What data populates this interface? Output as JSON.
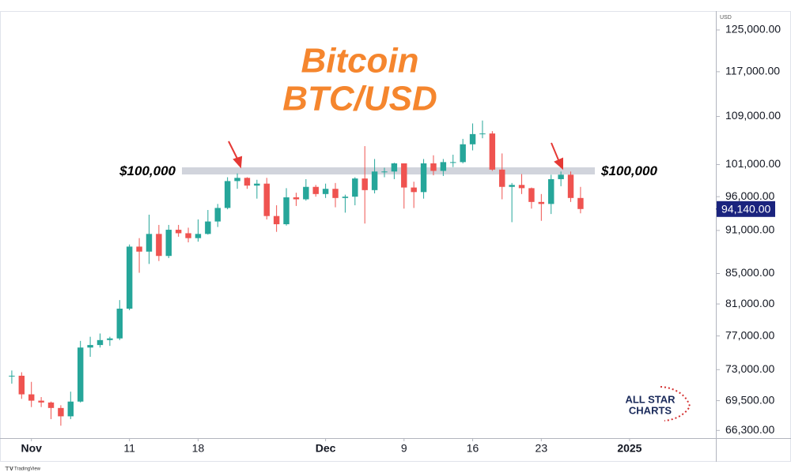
{
  "chart_data": {
    "type": "candlestick",
    "title": "Bitcoin",
    "subtitle": "BTC/USD",
    "axis_unit": "USD",
    "log_scale": true,
    "up_color": "#26a69a",
    "down_color": "#ef5350",
    "level": {
      "value": 100000,
      "label": "$100,000"
    },
    "last_price": {
      "value": 94140,
      "label": "94,140.00"
    },
    "xlim": [
      -2.8,
      69.8
    ],
    "xticks": [
      {
        "value": 0,
        "label": "Nov"
      },
      {
        "value": 10,
        "label": "11"
      },
      {
        "value": 17,
        "label": "18"
      },
      {
        "value": 30,
        "label": "Dec"
      },
      {
        "value": 38,
        "label": "9"
      },
      {
        "value": 45,
        "label": "16"
      },
      {
        "value": 52,
        "label": "23"
      },
      {
        "value": 61,
        "label": "2025"
      }
    ],
    "ylim": [
      65500,
      128800
    ],
    "yticks": [
      {
        "value": 125000,
        "label": "125,000.00"
      },
      {
        "value": 117000,
        "label": "117,000.00"
      },
      {
        "value": 109000,
        "label": "109,000.00"
      },
      {
        "value": 101000,
        "label": "101,000.00"
      },
      {
        "value": 96000,
        "label": "96,000.00"
      },
      {
        "value": 91000,
        "label": "91,000.00"
      },
      {
        "value": 85000,
        "label": "85,000.00"
      },
      {
        "value": 81000,
        "label": "81,000.00"
      },
      {
        "value": 77000,
        "label": "77,000.00"
      },
      {
        "value": 73000,
        "label": "73,000.00"
      },
      {
        "value": 69500,
        "label": "69,500.00"
      },
      {
        "value": 66300,
        "label": "66,300.00"
      }
    ],
    "x": [
      -2,
      -1,
      0,
      1,
      2,
      3,
      4,
      5,
      6,
      7,
      8,
      9,
      10,
      11,
      12,
      13,
      14,
      15,
      16,
      17,
      18,
      19,
      20,
      21,
      22,
      23,
      24,
      25,
      26,
      27,
      28,
      29,
      30,
      31,
      32,
      33,
      34,
      35,
      36,
      37,
      38,
      39,
      40,
      41,
      42,
      43,
      44,
      45,
      46,
      47,
      48,
      49,
      50,
      51,
      52,
      53,
      54,
      55,
      56
    ],
    "open": [
      72300,
      72300,
      70200,
      69500,
      69300,
      68700,
      67800,
      69400,
      75600,
      75900,
      76500,
      76700,
      80400,
      88700,
      88000,
      90500,
      87400,
      91100,
      90600,
      89900,
      90500,
      92300,
      94300,
      98400,
      98900,
      97700,
      98000,
      93100,
      91900,
      95900,
      95600,
      97500,
      96400,
      97200,
      95800,
      96000,
      98800,
      97000,
      99900,
      99900,
      101200,
      97400,
      96700,
      101200,
      100000,
      101400,
      101400,
      104300,
      106000,
      106100,
      100200,
      97500,
      97800,
      97300,
      95200,
      94900,
      98700,
      99400,
      95800
    ],
    "high": [
      72900,
      72700,
      71600,
      69900,
      69400,
      69000,
      70500,
      76400,
      76900,
      77300,
      76900,
      81500,
      89000,
      89900,
      93300,
      91800,
      91800,
      91800,
      91400,
      92600,
      94000,
      94900,
      99000,
      99600,
      99000,
      98600,
      98900,
      94700,
      97300,
      96600,
      98700,
      97800,
      98000,
      98100,
      96300,
      99000,
      104000,
      101900,
      100500,
      101300,
      101200,
      98300,
      101900,
      102500,
      101900,
      102600,
      105200,
      107800,
      108300,
      106500,
      102800,
      98100,
      99500,
      97400,
      96400,
      99400,
      99900,
      99900,
      97500
    ],
    "low": [
      71400,
      69700,
      68800,
      68800,
      67500,
      66800,
      67500,
      69300,
      74500,
      75600,
      75800,
      76500,
      80200,
      85100,
      86300,
      86700,
      87100,
      90100,
      89300,
      89400,
      90400,
      91500,
      94100,
      97200,
      97200,
      95700,
      92600,
      90800,
      91700,
      94600,
      95400,
      96000,
      95800,
      94400,
      93600,
      94700,
      92000,
      96500,
      99000,
      98700,
      94200,
      94300,
      95700,
      99300,
      99200,
      100600,
      101200,
      103300,
      105300,
      100000,
      95600,
      92200,
      96400,
      94200,
      92400,
      93400,
      97600,
      95200,
      93500
    ],
    "close": [
      72300,
      70200,
      69500,
      69300,
      68700,
      67800,
      69400,
      75600,
      75900,
      76500,
      76700,
      80400,
      88700,
      88000,
      90500,
      87400,
      91100,
      90600,
      89900,
      90500,
      92300,
      94300,
      98400,
      98900,
      97700,
      98000,
      93100,
      91900,
      95900,
      95600,
      97500,
      96400,
      97200,
      95800,
      96000,
      98800,
      97000,
      99900,
      99900,
      101200,
      97400,
      96700,
      101200,
      100000,
      101400,
      101400,
      104300,
      106000,
      106100,
      100200,
      97500,
      97800,
      97300,
      95200,
      94900,
      98700,
      99400,
      95800,
      94140
    ],
    "logo": [
      "ALL STAR",
      "CHARTS"
    ],
    "footer": "TradingView"
  }
}
